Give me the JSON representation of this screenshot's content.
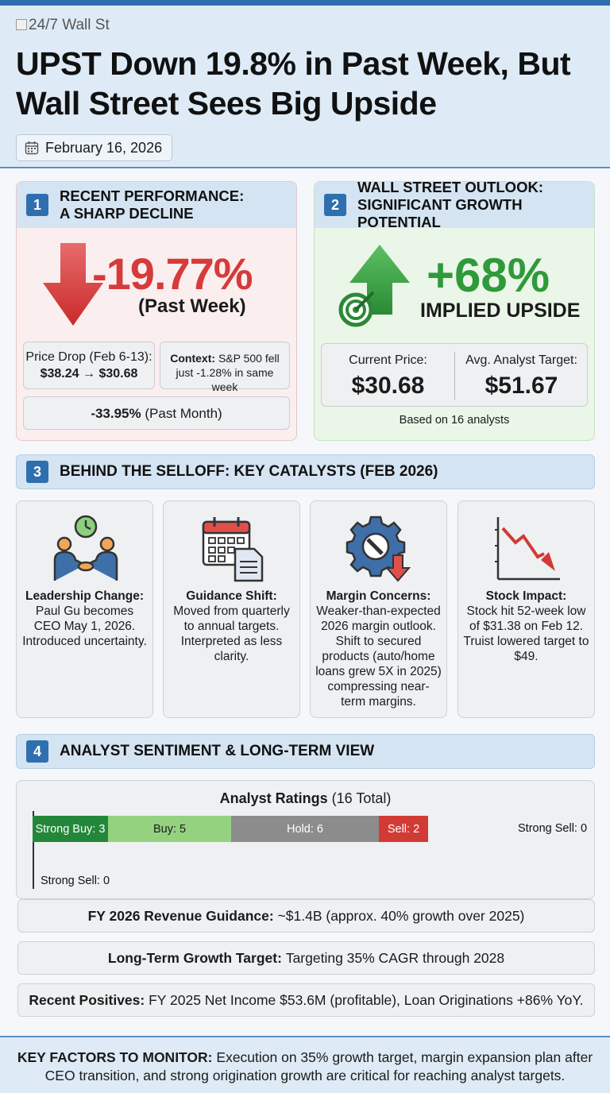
{
  "header": {
    "logo_alt": "24/7 Wall St",
    "title": "UPST Down 19.8% in Past Week, But Wall Street Sees Big Upside",
    "date": "February 16, 2026"
  },
  "panel1": {
    "number": "1",
    "title": "RECENT PERFORMANCE: A SHARP DECLINE",
    "big_value": "-19.77%",
    "big_caption": "(Past Week)",
    "price_drop_label": "Price Drop (Feb 6-13):",
    "price_drop_value": "$38.24 → $30.68",
    "context_label": "Context:",
    "context_text": "S&P 500 fell just -1.28% in same week",
    "month_value": "-33.95%",
    "month_label": "(Past Month)",
    "accent": "#d63a3a"
  },
  "panel2": {
    "number": "2",
    "title": "WALL STREET OUTLOOK: SIGNIFICANT GROWTH POTENTIAL",
    "big_value": "+68%",
    "big_caption": "IMPLIED UPSIDE",
    "current_label": "Current Price:",
    "current_value": "$30.68",
    "target_label": "Avg. Analyst Target:",
    "target_value": "$51.67",
    "note": "Based on 16 analysts",
    "accent": "#2f9a3a"
  },
  "section3": {
    "number": "3",
    "title": "BEHIND THE SELLOFF: KEY CATALYSTS (FEB 2026)",
    "cards": [
      {
        "icon": "handshake-clock-icon",
        "heading": "Leadership Change:",
        "text": "Paul Gu becomes CEO May 1, 2026. Introduced uncertainty."
      },
      {
        "icon": "calendar-document-icon",
        "heading": "Guidance Shift:",
        "text": "Moved from quarterly to annual targets. Interpreted as less clarity."
      },
      {
        "icon": "gear-wrench-down-icon",
        "heading": "Margin Concerns:",
        "text": "Weaker-than-expected 2026 margin outlook. Shift to secured products (auto/home loans grew 5X in 2025) compressing near-term margins."
      },
      {
        "icon": "declining-chart-icon",
        "heading": "Stock Impact:",
        "text": "Stock hit 52-week low of $31.38 on Feb 12. Truist lowered target to $49."
      }
    ]
  },
  "section4": {
    "number": "4",
    "title": "ANALYST SENTIMENT & LONG-TERM VIEW",
    "ratings_title_bold": "Analyst Ratings",
    "ratings_title_rest": "(16 Total)",
    "revenue_label": "FY 2026 Revenue Guidance:",
    "revenue_text": "~$1.4B (approx. 40% growth over 2025)",
    "growth_label": "Long-Term Growth Target:",
    "growth_text": "Targeting 35% CAGR through 2028",
    "positives_label": "Recent Positives:",
    "positives_text": "FY 2025 Net Income $53.6M (profitable), Loan Originations +86% YoY."
  },
  "chart_data": {
    "type": "bar",
    "title": "Analyst Ratings (16 Total)",
    "categories": [
      "Strong Buy",
      "Buy",
      "Hold",
      "Sell",
      "Strong Sell"
    ],
    "values": [
      3,
      5,
      6,
      2,
      0
    ],
    "labels": [
      "Strong Buy: 3",
      "Buy: 5",
      "Hold: 6",
      "Sell: 2",
      "Strong Sell: 0"
    ],
    "colors": [
      "#23873a",
      "#94d27f",
      "#8c8c8c",
      "#d23a36",
      "#ffffff"
    ],
    "stacked": true
  },
  "footer": {
    "label": "KEY FACTORS TO MONITOR:",
    "text": "Execution on 35% growth target, margin expansion plan after CEO transition, and strong origination growth are critical for reaching analyst targets."
  }
}
